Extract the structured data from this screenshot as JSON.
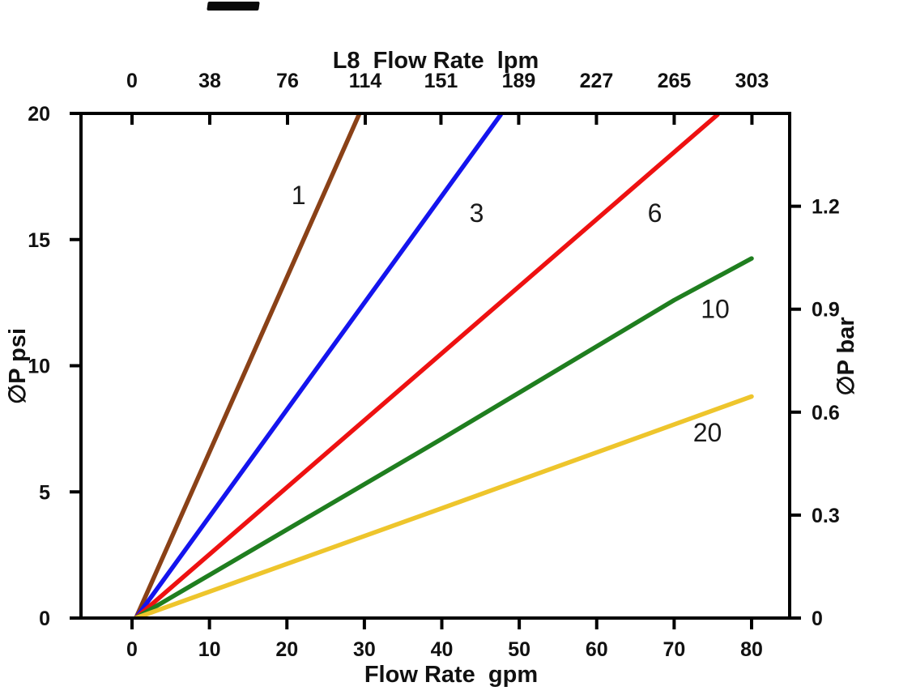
{
  "page": {
    "background": "#ffffff"
  },
  "chart_data": {
    "type": "line",
    "model": "L8",
    "top_axis": {
      "title": "L8  Flow Rate  lpm",
      "unit": "lpm",
      "ticks": [
        0,
        38,
        76,
        114,
        151,
        189,
        227,
        265,
        303
      ],
      "lpm_per_gpm": 3.78541
    },
    "bottom_axis": {
      "title": "Flow Rate  gpm",
      "unit": "gpm",
      "ticks": [
        0,
        10,
        20,
        30,
        40,
        50,
        60,
        70,
        80
      ],
      "range": [
        0,
        80
      ]
    },
    "left_axis": {
      "title": "∅P psi",
      "unit": "psi",
      "ticks": [
        0,
        5,
        10,
        15,
        20
      ],
      "range": [
        0,
        20
      ]
    },
    "right_axis": {
      "title": "∅P bar",
      "unit": "bar",
      "ticks": [
        0,
        0.3,
        0.6,
        0.9,
        1.2
      ],
      "psi_per_bar": 13.6
    },
    "grid": false,
    "series": [
      {
        "label": "1",
        "color": "#8a4117",
        "points": [
          [
            0.5,
            0
          ],
          [
            29.3,
            19.95
          ]
        ],
        "label_at": [
          21.5,
          16.4
        ]
      },
      {
        "label": "3",
        "color": "#1414ee",
        "points": [
          [
            0.5,
            0
          ],
          [
            47.6,
            19.95
          ]
        ],
        "label_at": [
          44.5,
          15.7
        ]
      },
      {
        "label": "6",
        "color": "#ee1111",
        "points": [
          [
            0.5,
            0
          ],
          [
            75.6,
            19.95
          ]
        ],
        "label_at": [
          67.5,
          15.7
        ]
      },
      {
        "label": "10",
        "color": "#1f7e1f",
        "points": [
          [
            0.5,
            0
          ],
          [
            40,
            7.1
          ],
          [
            70,
            12.6
          ],
          [
            80,
            14.25
          ]
        ],
        "label_at": [
          75.3,
          11.9
        ]
      },
      {
        "label": "20",
        "color": "#eec52c",
        "points": [
          [
            0.5,
            0
          ],
          [
            40,
            4.35
          ],
          [
            80,
            8.78
          ]
        ],
        "label_at": [
          74.3,
          7.0
        ]
      }
    ]
  }
}
